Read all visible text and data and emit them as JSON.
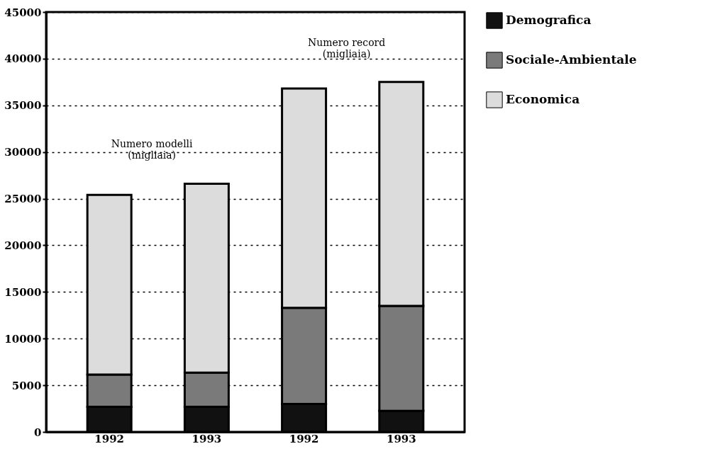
{
  "chart_data": {
    "type": "bar",
    "stacked": true,
    "categories": [
      "1992",
      "1993",
      "1992",
      "1993"
    ],
    "series": [
      {
        "name": "Demografica",
        "color": "#111111",
        "values": [
          2700,
          2700,
          3000,
          2250
        ]
      },
      {
        "name": "Sociale-Ambientale",
        "color": "#7a7a7a",
        "values": [
          3450,
          3650,
          10300,
          11250
        ]
      },
      {
        "name": "Economica",
        "color": "#dcdcdc",
        "values": [
          19250,
          20250,
          23500,
          24000
        ]
      }
    ],
    "ylim": [
      0,
      45000
    ],
    "yticks": [
      0,
      5000,
      10000,
      15000,
      20000,
      25000,
      30000,
      35000,
      40000,
      45000
    ],
    "grid": "y",
    "legend": "top right",
    "annotations": [
      "Numero modelli\n(migliaia)",
      "Numero record\n(migliaia)"
    ]
  }
}
